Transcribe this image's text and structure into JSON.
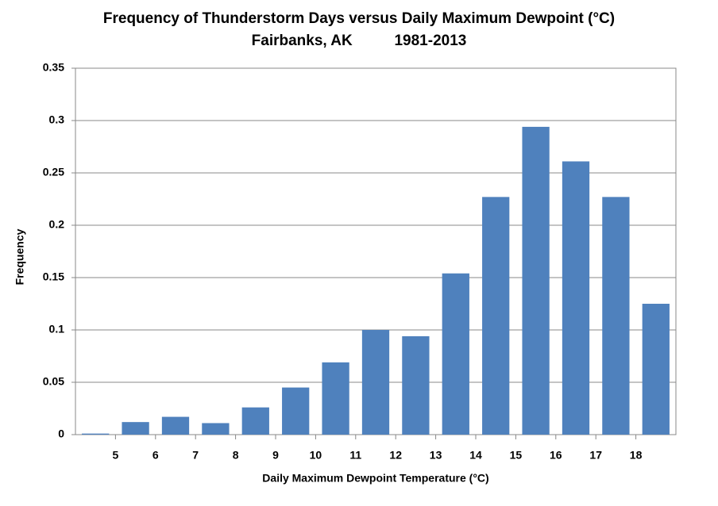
{
  "chart_data": {
    "type": "histogram",
    "title": "Frequency of Thunderstorm Days versus Daily Maximum Dewpoint (°C)",
    "subtitle": "Fairbanks, AK          1981-2013",
    "x_label": "Daily Maximum Dewpoint Temperature (°C)",
    "y_label": "Frequency",
    "bins": [
      4,
      5,
      6,
      7,
      8,
      9,
      10,
      11,
      12,
      13,
      14,
      15,
      16,
      17,
      18,
      19
    ],
    "values": [
      0.001,
      0.012,
      0.017,
      0.011,
      0.026,
      0.045,
      0.069,
      0.1,
      0.094,
      0.154,
      0.227,
      0.294,
      0.261,
      0.227,
      0.125
    ],
    "color": "#4f81bd",
    "xlim": [
      4,
      19
    ],
    "xticks": [
      5,
      6,
      7,
      8,
      9,
      10,
      11,
      12,
      13,
      14,
      15,
      16,
      17,
      18
    ],
    "ylim": [
      0,
      0.35
    ],
    "yticks": [
      0,
      0.05,
      0.1,
      0.15,
      0.2,
      0.25,
      0.3,
      0.35
    ],
    "grid": true
  }
}
